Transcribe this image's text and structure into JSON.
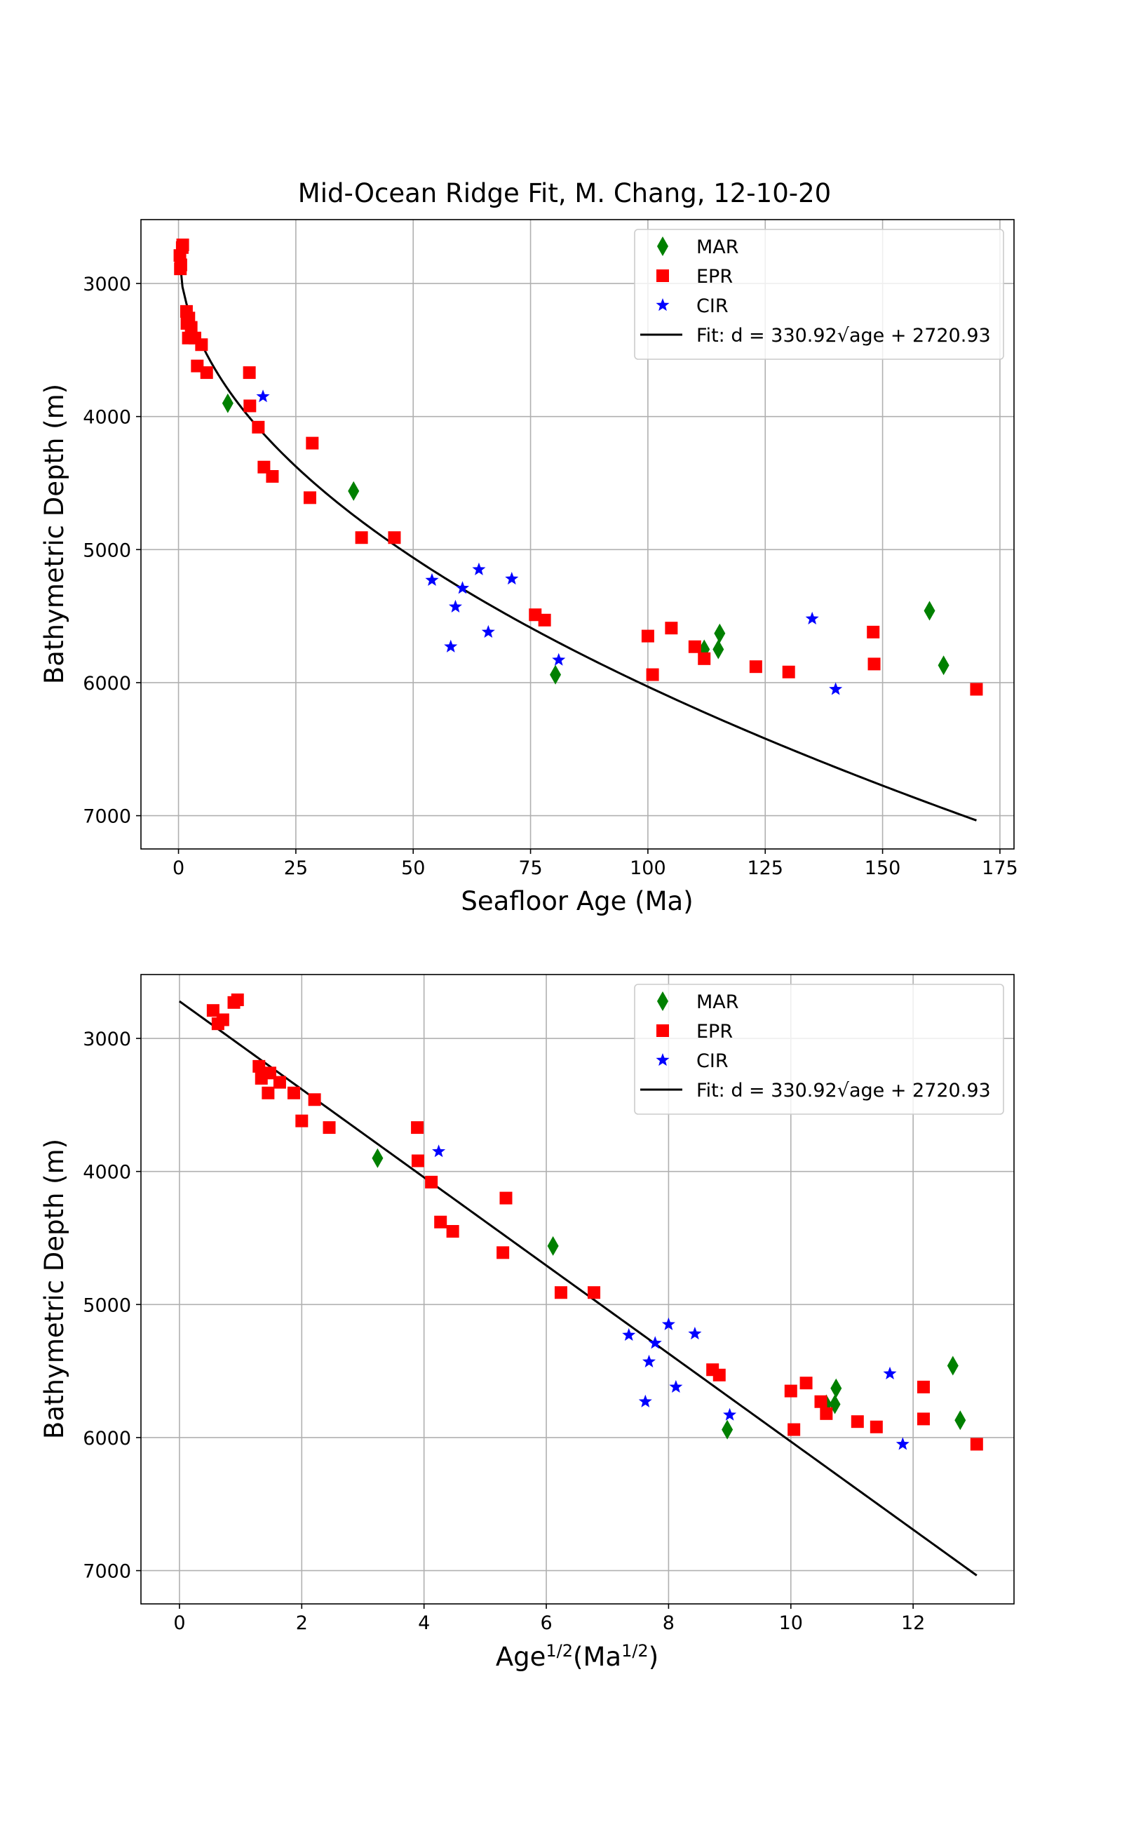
{
  "chart_data": [
    {
      "type": "scatter",
      "title": "Mid-Ocean Ridge Fit, M. Chang, 12-10-20",
      "xlabel": "Seafloor Age (Ma)",
      "ylabel": "Bathymetric Depth (m)",
      "xlim": [
        -8,
        178
      ],
      "ylim": [
        7250,
        2520
      ],
      "y_inverted": true,
      "x_ticks": [
        0,
        25,
        50,
        75,
        100,
        125,
        150,
        175
      ],
      "y_ticks": [
        3000,
        4000,
        5000,
        6000,
        7000
      ],
      "grid": true,
      "legend_position": "top-right",
      "series": [
        {
          "name": "MAR",
          "marker": "diamond",
          "color": "#008000",
          "points": [
            [
              10.5,
              3900
            ],
            [
              37.3,
              4560
            ],
            [
              80.3,
              5940
            ],
            [
              112.0,
              5750
            ],
            [
              115.0,
              5750
            ],
            [
              115.3,
              5630
            ],
            [
              160.0,
              5460
            ],
            [
              163.0,
              5870
            ]
          ]
        },
        {
          "name": "EPR",
          "marker": "square",
          "color": "#ff0000",
          "points": [
            [
              0.3,
              2790
            ],
            [
              0.4,
              2890
            ],
            [
              0.5,
              2860
            ],
            [
              0.8,
              2730
            ],
            [
              0.9,
              2710
            ],
            [
              1.7,
              3210
            ],
            [
              1.8,
              3300
            ],
            [
              2.1,
              3410
            ],
            [
              2.2,
              3260
            ],
            [
              2.7,
              3330
            ],
            [
              3.5,
              3410
            ],
            [
              4.0,
              3620
            ],
            [
              4.9,
              3460
            ],
            [
              6.0,
              3670
            ],
            [
              15.1,
              3670
            ],
            [
              15.2,
              3920
            ],
            [
              17.0,
              4080
            ],
            [
              18.2,
              4380
            ],
            [
              20.0,
              4450
            ],
            [
              28.0,
              4610
            ],
            [
              28.5,
              4200
            ],
            [
              39.0,
              4910
            ],
            [
              46.0,
              4910
            ],
            [
              76.0,
              5490
            ],
            [
              78.0,
              5530
            ],
            [
              100.0,
              5650
            ],
            [
              101.0,
              5940
            ],
            [
              105.0,
              5590
            ],
            [
              110.0,
              5730
            ],
            [
              112.0,
              5820
            ],
            [
              123.0,
              5880
            ],
            [
              130.0,
              5920
            ],
            [
              148.0,
              5620
            ],
            [
              148.2,
              5860
            ],
            [
              170.0,
              6050
            ]
          ]
        },
        {
          "name": "CIR",
          "marker": "star",
          "color": "#0000ff",
          "points": [
            [
              18.0,
              3850
            ],
            [
              54.0,
              5230
            ],
            [
              58.0,
              5730
            ],
            [
              59.0,
              5430
            ],
            [
              60.5,
              5290
            ],
            [
              64.0,
              5150
            ],
            [
              66.0,
              5620
            ],
            [
              71.0,
              5220
            ],
            [
              81.0,
              5830
            ],
            [
              135.0,
              5520
            ],
            [
              140.0,
              6050
            ]
          ]
        }
      ],
      "fit": {
        "label": "Fit: d = 330.92√age + 2720.93",
        "color": "#000000",
        "slope": 330.92,
        "intercept": 2720.93,
        "x_range": [
          0,
          170
        ],
        "transform": "sqrt"
      }
    },
    {
      "type": "scatter",
      "title": "",
      "xlabel": "Age1/2(Ma1/2)",
      "ylabel": "Bathymetric Depth (m)",
      "xlim": [
        -0.63,
        13.65
      ],
      "ylim": [
        7250,
        2520
      ],
      "y_inverted": true,
      "x_ticks": [
        0,
        2,
        4,
        6,
        8,
        10,
        12
      ],
      "y_ticks": [
        3000,
        4000,
        5000,
        6000,
        7000
      ],
      "grid": true,
      "legend_position": "top-right",
      "series": [
        {
          "name": "MAR",
          "marker": "diamond",
          "color": "#008000",
          "points": [
            [
              3.24,
              3900
            ],
            [
              6.11,
              4560
            ],
            [
              8.96,
              5940
            ],
            [
              10.58,
              5750
            ],
            [
              10.72,
              5750
            ],
            [
              10.74,
              5630
            ],
            [
              12.65,
              5460
            ],
            [
              12.77,
              5870
            ]
          ]
        },
        {
          "name": "EPR",
          "marker": "square",
          "color": "#ff0000",
          "points": [
            [
              0.55,
              2790
            ],
            [
              0.63,
              2890
            ],
            [
              0.71,
              2860
            ],
            [
              0.89,
              2730
            ],
            [
              0.95,
              2710
            ],
            [
              1.3,
              3210
            ],
            [
              1.34,
              3300
            ],
            [
              1.45,
              3410
            ],
            [
              1.48,
              3260
            ],
            [
              1.64,
              3330
            ],
            [
              1.87,
              3410
            ],
            [
              2.0,
              3620
            ],
            [
              2.21,
              3460
            ],
            [
              2.45,
              3670
            ],
            [
              3.89,
              3670
            ],
            [
              3.9,
              3920
            ],
            [
              4.12,
              4080
            ],
            [
              4.27,
              4380
            ],
            [
              4.47,
              4450
            ],
            [
              5.29,
              4610
            ],
            [
              5.34,
              4200
            ],
            [
              6.24,
              4910
            ],
            [
              6.78,
              4910
            ],
            [
              8.72,
              5490
            ],
            [
              8.83,
              5530
            ],
            [
              10.0,
              5650
            ],
            [
              10.05,
              5940
            ],
            [
              10.25,
              5590
            ],
            [
              10.49,
              5730
            ],
            [
              10.58,
              5820
            ],
            [
              11.09,
              5880
            ],
            [
              11.4,
              5920
            ],
            [
              12.17,
              5620
            ],
            [
              12.17,
              5860
            ],
            [
              13.04,
              6050
            ]
          ]
        },
        {
          "name": "CIR",
          "marker": "star",
          "color": "#0000ff",
          "points": [
            [
              4.24,
              3850
            ],
            [
              7.35,
              5230
            ],
            [
              7.62,
              5730
            ],
            [
              7.68,
              5430
            ],
            [
              7.78,
              5290
            ],
            [
              8.0,
              5150
            ],
            [
              8.12,
              5620
            ],
            [
              8.43,
              5220
            ],
            [
              9.0,
              5830
            ],
            [
              11.62,
              5520
            ],
            [
              11.83,
              6050
            ]
          ]
        }
      ],
      "fit": {
        "label": "Fit: d = 330.92√age + 2720.93",
        "color": "#000000",
        "slope": 330.92,
        "intercept": 2720.93,
        "x_range": [
          0,
          13.04
        ],
        "transform": "linear"
      }
    }
  ]
}
